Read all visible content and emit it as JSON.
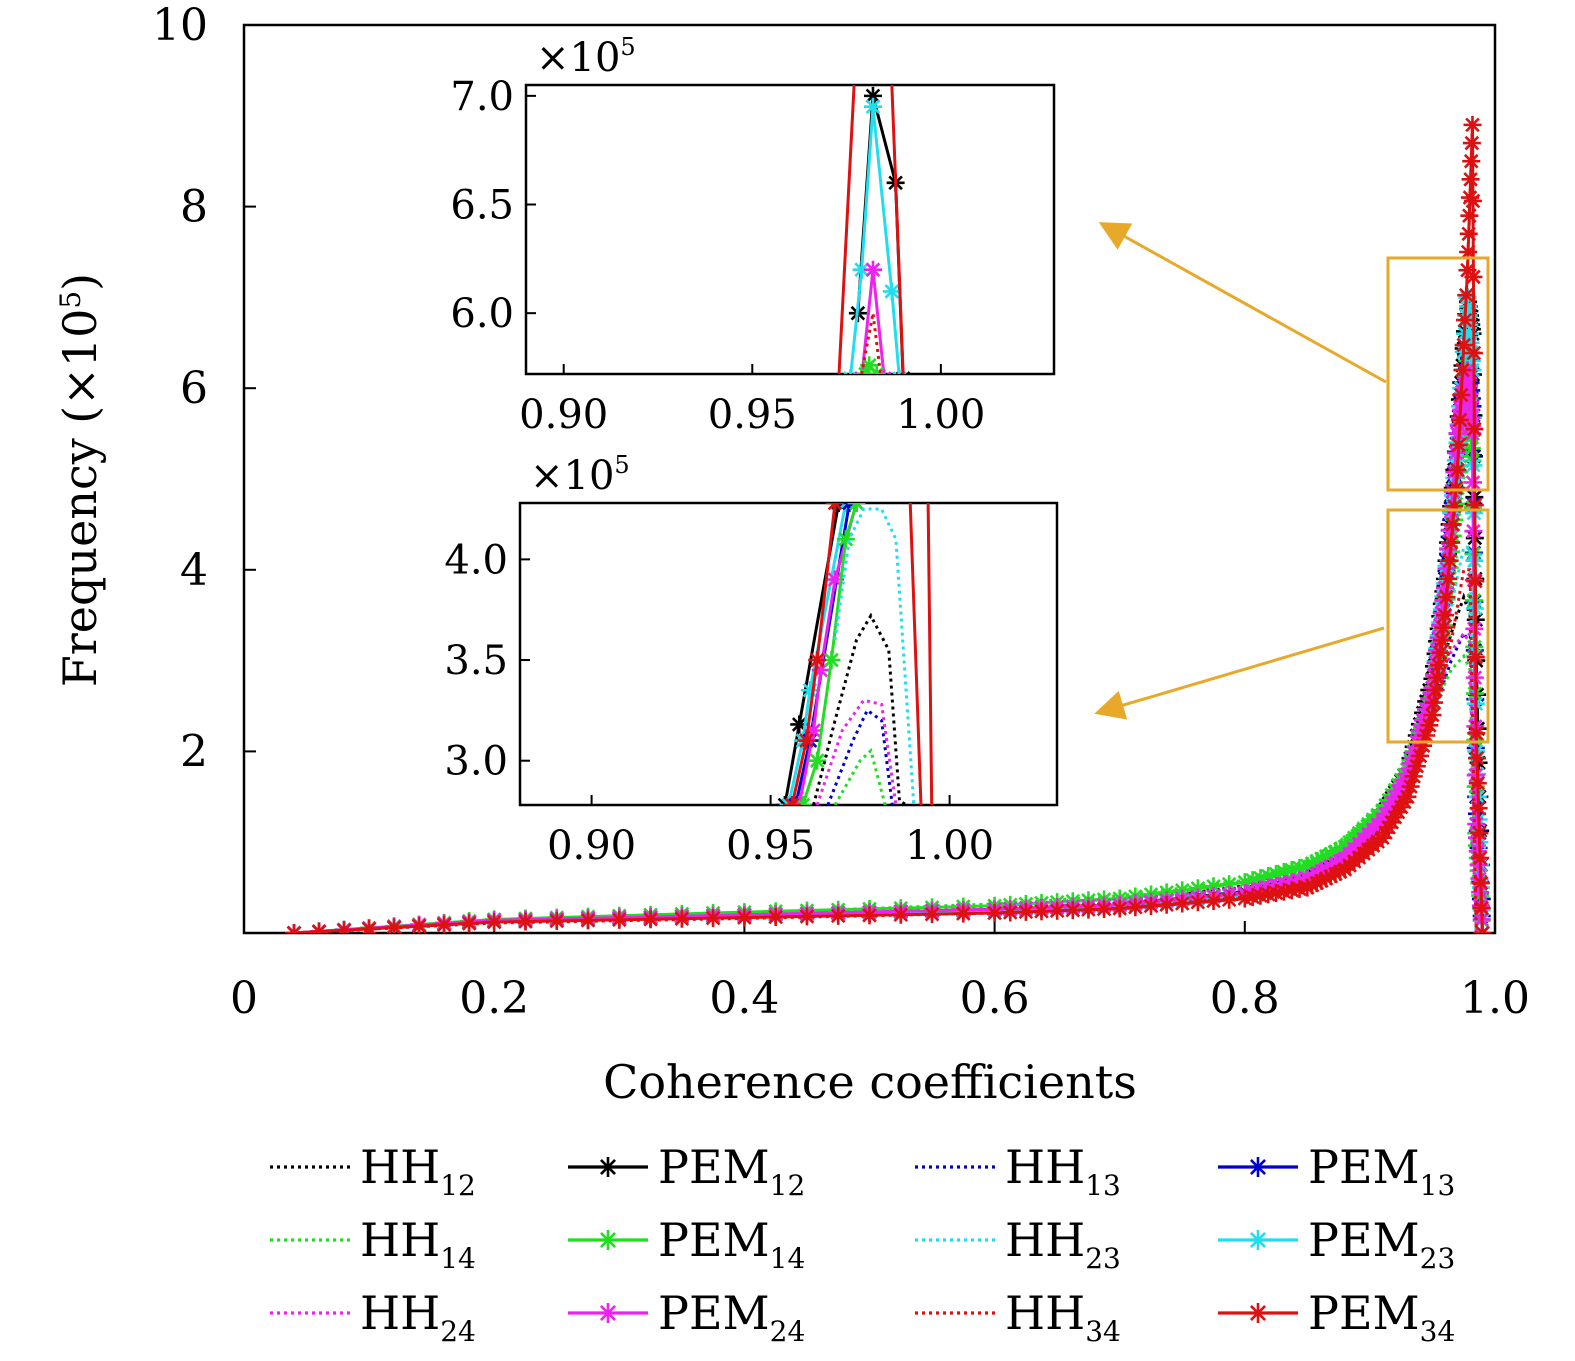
{
  "figure": {
    "xlabel": "Coherence coefficients",
    "ylabel": "Frequency (×10⁵)",
    "ylabel_main": "Frequency (×10",
    "ylabel_exp": "5",
    "ylabel_close": ")",
    "inset_multiplier": "×10",
    "inset_multiplier_exp": "5",
    "highlight_color": "#E8A92B"
  },
  "chart_data": [
    {
      "type": "line",
      "role": "main",
      "xlabel": "Coherence coefficients",
      "ylabel": "Frequency (×10⁵)",
      "xlim": [
        0,
        1.0
      ],
      "ylim": [
        0,
        10
      ],
      "xticks": [
        0,
        0.2,
        0.4,
        0.6,
        0.8,
        1.0
      ],
      "xtick_labels": [
        "0",
        "0.2",
        "0.4",
        "0.6",
        "0.8",
        "1.0"
      ],
      "yticks": [
        2,
        4,
        6,
        8,
        10
      ],
      "ytick_labels": [
        "2",
        "4",
        "6",
        "8",
        "10"
      ],
      "grid": false,
      "legend_position": "bottom",
      "series": [
        {
          "name": "HH",
          "sub": "12",
          "style": "dotted",
          "marker": false,
          "color": "#000000",
          "x": [
            0.04,
            0.2,
            0.4,
            0.6,
            0.7,
            0.8,
            0.85,
            0.88,
            0.91,
            0.93,
            0.95,
            0.965,
            0.975,
            0.98,
            0.985
          ],
          "y": [
            0.0,
            0.12,
            0.18,
            0.26,
            0.33,
            0.52,
            0.75,
            1.0,
            1.4,
            1.9,
            2.6,
            3.3,
            3.7,
            3.5,
            0.0
          ]
        },
        {
          "name": "PEM",
          "sub": "12",
          "style": "solid",
          "marker": true,
          "color": "#000000",
          "x": [
            0.04,
            0.2,
            0.4,
            0.6,
            0.7,
            0.8,
            0.85,
            0.88,
            0.91,
            0.93,
            0.95,
            0.96,
            0.97,
            0.978,
            0.982,
            0.985,
            0.99
          ],
          "y": [
            0.0,
            0.14,
            0.2,
            0.26,
            0.31,
            0.45,
            0.62,
            0.85,
            1.3,
            1.8,
            2.8,
            3.9,
            5.5,
            7.0,
            6.6,
            3.0,
            0.0
          ]
        },
        {
          "name": "HH",
          "sub": "13",
          "style": "dotted",
          "marker": false,
          "color": "#0000CC",
          "x": [
            0.04,
            0.2,
            0.4,
            0.6,
            0.7,
            0.8,
            0.85,
            0.88,
            0.91,
            0.93,
            0.95,
            0.965,
            0.975,
            0.98,
            0.985
          ],
          "y": [
            0.0,
            0.12,
            0.18,
            0.25,
            0.31,
            0.47,
            0.66,
            0.88,
            1.25,
            1.7,
            2.4,
            3.0,
            3.3,
            3.2,
            0.0
          ]
        },
        {
          "name": "PEM",
          "sub": "13",
          "style": "solid",
          "marker": true,
          "color": "#0000CC",
          "x": [
            0.04,
            0.2,
            0.4,
            0.6,
            0.7,
            0.8,
            0.85,
            0.88,
            0.91,
            0.93,
            0.95,
            0.96,
            0.97,
            0.978,
            0.982,
            0.985,
            0.99
          ],
          "y": [
            0.0,
            0.13,
            0.19,
            0.25,
            0.3,
            0.43,
            0.6,
            0.82,
            1.25,
            1.75,
            2.7,
            3.8,
            5.3,
            6.5,
            5.8,
            1.5,
            0.0
          ]
        },
        {
          "name": "HH",
          "sub": "14",
          "style": "dotted",
          "marker": false,
          "color": "#22DD22",
          "x": [
            0.04,
            0.2,
            0.4,
            0.6,
            0.7,
            0.8,
            0.85,
            0.88,
            0.91,
            0.93,
            0.95,
            0.965,
            0.975,
            0.98,
            0.985
          ],
          "y": [
            0.0,
            0.14,
            0.22,
            0.32,
            0.41,
            0.58,
            0.8,
            1.05,
            1.45,
            1.85,
            2.45,
            2.9,
            3.05,
            2.9,
            0.0
          ]
        },
        {
          "name": "PEM",
          "sub": "14",
          "style": "solid",
          "marker": true,
          "color": "#22DD22",
          "x": [
            0.04,
            0.2,
            0.4,
            0.6,
            0.7,
            0.8,
            0.85,
            0.88,
            0.91,
            0.93,
            0.95,
            0.96,
            0.97,
            0.978,
            0.982,
            0.985,
            0.99
          ],
          "y": [
            0.0,
            0.15,
            0.23,
            0.3,
            0.38,
            0.56,
            0.74,
            0.95,
            1.35,
            1.8,
            2.6,
            3.5,
            4.9,
            6.3,
            5.2,
            1.1,
            0.0
          ]
        },
        {
          "name": "HH",
          "sub": "23",
          "style": "dotted",
          "marker": false,
          "color": "#22DDEE",
          "x": [
            0.04,
            0.2,
            0.4,
            0.6,
            0.7,
            0.8,
            0.85,
            0.88,
            0.91,
            0.93,
            0.95,
            0.965,
            0.975,
            0.98,
            0.985
          ],
          "y": [
            0.0,
            0.12,
            0.18,
            0.25,
            0.3,
            0.44,
            0.62,
            0.85,
            1.25,
            1.75,
            2.6,
            3.6,
            4.25,
            4.25,
            0.0
          ]
        },
        {
          "name": "PEM",
          "sub": "23",
          "style": "solid",
          "marker": true,
          "color": "#22DDEE",
          "x": [
            0.04,
            0.2,
            0.4,
            0.6,
            0.7,
            0.8,
            0.85,
            0.88,
            0.91,
            0.93,
            0.95,
            0.96,
            0.97,
            0.978,
            0.982,
            0.985,
            0.99
          ],
          "y": [
            0.0,
            0.13,
            0.19,
            0.25,
            0.3,
            0.43,
            0.6,
            0.82,
            1.25,
            1.75,
            2.7,
            3.85,
            5.4,
            7.0,
            6.2,
            2.0,
            0.0
          ]
        },
        {
          "name": "HH",
          "sub": "24",
          "style": "dotted",
          "marker": false,
          "color": "#EE22EE",
          "x": [
            0.04,
            0.2,
            0.4,
            0.6,
            0.7,
            0.8,
            0.85,
            0.88,
            0.91,
            0.93,
            0.95,
            0.965,
            0.975,
            0.98,
            0.985
          ],
          "y": [
            0.0,
            0.13,
            0.2,
            0.27,
            0.33,
            0.49,
            0.68,
            0.9,
            1.28,
            1.72,
            2.42,
            3.1,
            3.3,
            3.2,
            0.0
          ]
        },
        {
          "name": "PEM",
          "sub": "24",
          "style": "solid",
          "marker": true,
          "color": "#EE22EE",
          "x": [
            0.04,
            0.2,
            0.4,
            0.6,
            0.7,
            0.8,
            0.85,
            0.88,
            0.91,
            0.93,
            0.95,
            0.96,
            0.97,
            0.978,
            0.982,
            0.985,
            0.99
          ],
          "y": [
            0.0,
            0.14,
            0.2,
            0.26,
            0.31,
            0.44,
            0.6,
            0.82,
            1.25,
            1.75,
            2.7,
            3.8,
            5.5,
            6.2,
            5.5,
            1.2,
            0.0
          ]
        },
        {
          "name": "HH",
          "sub": "34",
          "style": "dotted",
          "marker": false,
          "color": "#DD1111",
          "x": [
            0.04,
            0.2,
            0.4,
            0.6,
            0.7,
            0.8,
            0.85,
            0.88,
            0.91,
            0.93,
            0.95,
            0.965,
            0.975,
            0.98,
            0.985
          ],
          "y": [
            0.0,
            0.11,
            0.16,
            0.22,
            0.27,
            0.4,
            0.56,
            0.78,
            1.15,
            1.6,
            2.35,
            3.2,
            4.0,
            4.0,
            0.0
          ]
        },
        {
          "name": "PEM",
          "sub": "34",
          "style": "solid",
          "marker": true,
          "color": "#DD1111",
          "x": [
            0.04,
            0.2,
            0.4,
            0.6,
            0.7,
            0.8,
            0.85,
            0.88,
            0.91,
            0.93,
            0.95,
            0.96,
            0.97,
            0.978,
            0.982,
            0.985,
            0.99
          ],
          "y": [
            0.0,
            0.12,
            0.17,
            0.22,
            0.27,
            0.38,
            0.5,
            0.7,
            1.05,
            1.5,
            2.4,
            3.5,
            5.1,
            7.3,
            8.9,
            2.2,
            0.0
          ]
        }
      ]
    },
    {
      "type": "line",
      "role": "inset-top",
      "xlim": [
        0.89,
        1.03
      ],
      "ylim": [
        5.72,
        7.05
      ],
      "xticks": [
        0.9,
        0.95,
        1.0
      ],
      "xtick_labels": [
        "0.90",
        "0.95",
        "1.00"
      ],
      "yticks": [
        6.0,
        6.5,
        7.0
      ],
      "ytick_labels": [
        "6.0",
        "6.5",
        "7.0"
      ],
      "series": [
        {
          "name": "PEM",
          "sub": "12",
          "color": "#000000",
          "marker": true,
          "x": [
            0.978,
            0.982,
            0.988,
            0.99
          ],
          "y": [
            6.0,
            7.0,
            6.6,
            5.7
          ]
        },
        {
          "name": "PEM",
          "sub": "23",
          "color": "#22DDEE",
          "marker": true,
          "x": [
            0.976,
            0.979,
            0.982,
            0.987,
            0.989
          ],
          "y": [
            5.7,
            6.2,
            6.95,
            6.1,
            5.7
          ]
        },
        {
          "name": "PEM",
          "sub": "24",
          "color": "#EE22EE",
          "marker": true,
          "x": [
            0.979,
            0.982,
            0.985
          ],
          "y": [
            5.7,
            6.2,
            5.7
          ]
        },
        {
          "name": "PEM",
          "sub": "14",
          "color": "#22DD22",
          "marker": true,
          "x": [
            0.98,
            0.981,
            0.983
          ],
          "y": [
            5.72,
            5.76,
            5.72
          ]
        },
        {
          "name": "HH",
          "sub": "34",
          "color": "#DD1111",
          "marker": false,
          "x": [
            0.979,
            0.982,
            0.984
          ],
          "y": [
            5.72,
            6.0,
            5.72
          ]
        },
        {
          "name": "PEM",
          "sub": "34",
          "color": "#DD1111",
          "marker": false,
          "x": [
            0.973,
            0.977
          ],
          "y": [
            5.72,
            7.05
          ]
        },
        {
          "name": "PEM",
          "sub": "34",
          "color": "#DD1111",
          "marker": false,
          "x": [
            0.987,
            0.99
          ],
          "y": [
            7.05,
            5.72
          ]
        }
      ]
    },
    {
      "type": "line",
      "role": "inset-bottom",
      "xlim": [
        0.88,
        1.03
      ],
      "ylim": [
        2.78,
        4.28
      ],
      "xticks": [
        0.9,
        0.95,
        1.0
      ],
      "xtick_labels": [
        "0.90",
        "0.95",
        "1.00"
      ],
      "yticks": [
        3.0,
        3.5,
        4.0
      ],
      "ytick_labels": [
        "3.0",
        "3.5",
        "4.0"
      ],
      "series": [
        {
          "name": "PEM",
          "sub": "12",
          "color": "#000000",
          "marker": true,
          "x": [
            0.954,
            0.958,
            0.969
          ],
          "y": [
            2.78,
            3.18,
            4.28
          ]
        },
        {
          "name": "PEM",
          "sub": "23",
          "color": "#22DDEE",
          "marker": true,
          "x": [
            0.955,
            0.959,
            0.961,
            0.971
          ],
          "y": [
            2.78,
            3.1,
            3.35,
            4.28
          ]
        },
        {
          "name": "PEM",
          "sub": "13",
          "color": "#0000CC",
          "marker": true,
          "x": [
            0.957,
            0.961,
            0.972
          ],
          "y": [
            2.78,
            3.1,
            4.28
          ]
        },
        {
          "name": "PEM",
          "sub": "24",
          "color": "#EE22EE",
          "marker": true,
          "x": [
            0.958,
            0.962,
            0.964,
            0.968,
            0.974
          ],
          "y": [
            2.78,
            3.15,
            3.45,
            3.9,
            4.28
          ]
        },
        {
          "name": "PEM",
          "sub": "14",
          "color": "#22DD22",
          "marker": true,
          "x": [
            0.959,
            0.963,
            0.967,
            0.971,
            0.974
          ],
          "y": [
            2.78,
            3.0,
            3.5,
            4.1,
            4.28
          ]
        },
        {
          "name": "PEM",
          "sub": "34",
          "color": "#DD1111",
          "marker": true,
          "x": [
            0.956,
            0.96,
            0.963,
            0.968
          ],
          "y": [
            2.78,
            3.1,
            3.5,
            4.28
          ]
        },
        {
          "name": "HH",
          "sub": "23",
          "color": "#22DDEE",
          "marker": false,
          "x": [
            0.968,
            0.972,
            0.976,
            0.981,
            0.985,
            0.99
          ],
          "y": [
            3.6,
            4.1,
            4.25,
            4.25,
            4.1,
            2.78
          ]
        },
        {
          "name": "HH",
          "sub": "12",
          "color": "#000000",
          "marker": false,
          "x": [
            0.962,
            0.968,
            0.974,
            0.978,
            0.983,
            0.986,
            0.988
          ],
          "y": [
            2.78,
            3.2,
            3.6,
            3.72,
            3.55,
            2.8,
            2.78
          ]
        },
        {
          "name": "HH",
          "sub": "13",
          "color": "#0000CC",
          "marker": false,
          "x": [
            0.966,
            0.973,
            0.977,
            0.981,
            0.984
          ],
          "y": [
            2.78,
            3.1,
            3.25,
            3.2,
            2.78
          ]
        },
        {
          "name": "HH",
          "sub": "24",
          "color": "#EE22EE",
          "marker": false,
          "x": [
            0.963,
            0.97,
            0.976,
            0.981,
            0.985
          ],
          "y": [
            2.78,
            3.15,
            3.3,
            3.28,
            2.78
          ]
        },
        {
          "name": "HH",
          "sub": "14",
          "color": "#22DD22",
          "marker": false,
          "x": [
            0.968,
            0.975,
            0.978,
            0.982
          ],
          "y": [
            2.78,
            3.0,
            3.05,
            2.78
          ]
        },
        {
          "name": "PEM",
          "sub": "34",
          "color": "#DD1111",
          "marker": false,
          "x": [
            0.989,
            0.992
          ],
          "y": [
            4.28,
            2.78
          ]
        },
        {
          "name": "PEM",
          "sub": "34",
          "color": "#DD1111",
          "marker": false,
          "x": [
            0.994,
            0.995
          ],
          "y": [
            4.28,
            2.78
          ]
        }
      ]
    }
  ]
}
